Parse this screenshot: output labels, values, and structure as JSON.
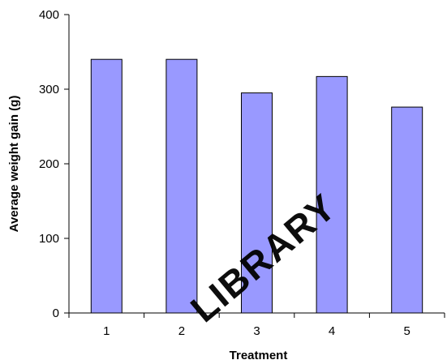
{
  "chart_data": {
    "type": "bar",
    "categories": [
      "1",
      "2",
      "3",
      "4",
      "5"
    ],
    "values": [
      340,
      340,
      295,
      317,
      276
    ],
    "title": "",
    "xlabel": "Treatment",
    "ylabel": "Average weight gain (g)",
    "ylim": [
      0,
      400
    ],
    "yticks": [
      0,
      100,
      200,
      300,
      400
    ],
    "grid": false,
    "bar_color": "#9999ff",
    "bar_edge_color": "#000000"
  },
  "watermark": {
    "text": "LIBRARY",
    "color": "#ffcc00"
  }
}
